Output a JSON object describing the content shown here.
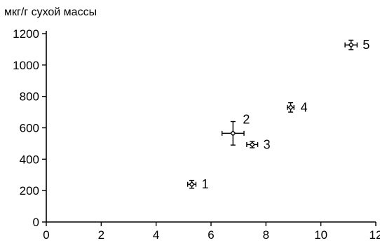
{
  "chart_data": {
    "type": "scatter",
    "title": "",
    "xlabel": "",
    "ylabel": "мкг/г сухой массы",
    "xlim": [
      0,
      12
    ],
    "ylim": [
      0,
      1200
    ],
    "xticks": [
      0,
      2,
      4,
      6,
      8,
      10,
      12
    ],
    "yticks": [
      0,
      200,
      400,
      600,
      800,
      1000,
      1200
    ],
    "grid": false,
    "points": [
      {
        "label": "1",
        "x": 5.3,
        "y": 240,
        "xerr": 0.15,
        "yerr": 25
      },
      {
        "label": "2",
        "x": 6.8,
        "y": 565,
        "xerr": 0.4,
        "yerr": 75
      },
      {
        "label": "3",
        "x": 7.5,
        "y": 493,
        "xerr": 0.2,
        "yerr": 20
      },
      {
        "label": "4",
        "x": 8.9,
        "y": 730,
        "xerr": 0.12,
        "yerr": 30
      },
      {
        "label": "5",
        "x": 11.1,
        "y": 1128,
        "xerr": 0.22,
        "yerr": 30
      }
    ]
  }
}
